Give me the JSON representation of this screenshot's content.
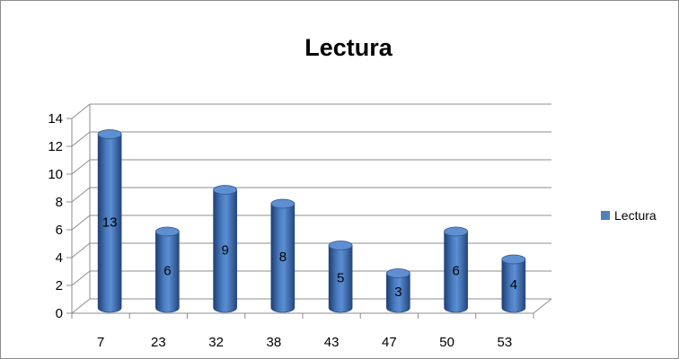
{
  "chart_data": {
    "type": "bar",
    "title": "Lectura",
    "categories": [
      "7",
      "23",
      "32",
      "38",
      "43",
      "47",
      "50",
      "53"
    ],
    "series": [
      {
        "name": "Lectura",
        "values": [
          13,
          6,
          9,
          8,
          5,
          3,
          6,
          4
        ],
        "color": "#4f81bd"
      }
    ],
    "ylim": [
      0,
      14
    ],
    "yticks": [
      "0",
      "2",
      "4",
      "6",
      "8",
      "10",
      "12",
      "14"
    ],
    "data_labels": [
      "13",
      "6",
      "9",
      "8",
      "5",
      "3",
      "6",
      "4"
    ],
    "grid": true,
    "legend": "right",
    "style": "3d-cylinder"
  }
}
